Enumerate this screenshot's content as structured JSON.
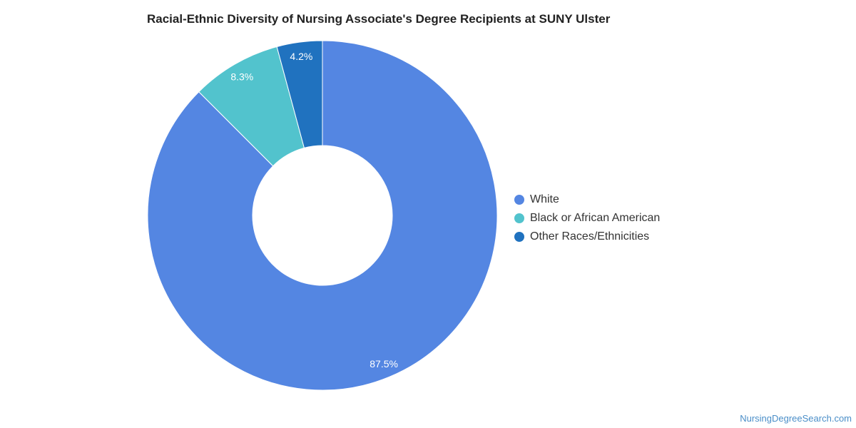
{
  "chart_data": {
    "type": "pie",
    "title": "Racial-Ethnic Diversity of Nursing Associate's Degree Recipients at SUNY Ulster",
    "donut": true,
    "legend_position": "right",
    "slices": [
      {
        "label": "White",
        "value": 87.5,
        "value_label": "87.5%",
        "color": "#5486e2"
      },
      {
        "label": "Black or African American",
        "value": 8.3,
        "value_label": "8.3%",
        "color": "#52c3cd"
      },
      {
        "label": "Other Races/Ethnicities",
        "value": 4.2,
        "value_label": "4.2%",
        "color": "#2072bf"
      }
    ]
  },
  "source": "NursingDegreeSearch.com"
}
